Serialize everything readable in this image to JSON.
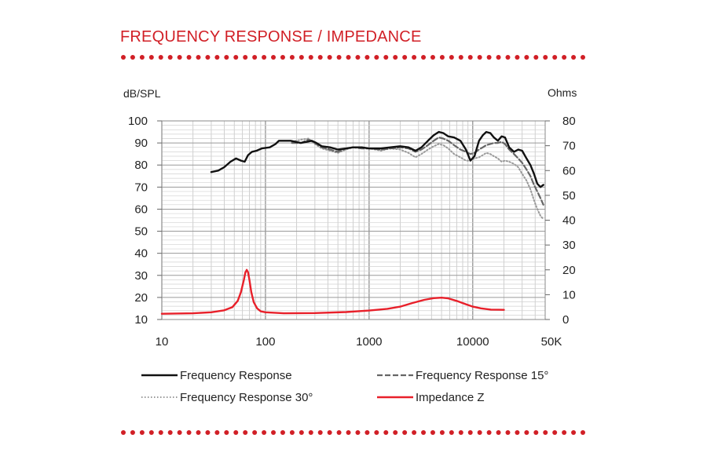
{
  "page": {
    "title": "FREQUENCY RESPONSE / IMPEDANCE",
    "accent_color": "#d11f26"
  },
  "chart_data": {
    "type": "line",
    "title": "",
    "xlabel": "",
    "x_scale": "log",
    "xlim": [
      10,
      50000
    ],
    "x_ticks": [
      {
        "value": 10,
        "label": "10"
      },
      {
        "value": 100,
        "label": "100"
      },
      {
        "value": 1000,
        "label": "1000"
      },
      {
        "value": 10000,
        "label": "10000"
      },
      {
        "value": 50000,
        "label": "50K"
      }
    ],
    "y_left": {
      "label": "dB/SPL",
      "range": [
        10,
        100
      ],
      "ticks": [
        10,
        20,
        30,
        40,
        50,
        60,
        70,
        80,
        90,
        100
      ]
    },
    "y_right": {
      "label": "Ohms",
      "range": [
        0,
        80
      ],
      "ticks": [
        0,
        10,
        20,
        30,
        40,
        50,
        60,
        70,
        80
      ]
    },
    "grid": true,
    "legend_position": "bottom",
    "series": [
      {
        "name": "Frequency Response",
        "axis": "left",
        "style": "solid",
        "color": "#111111",
        "points": [
          [
            30,
            76.8
          ],
          [
            35,
            77.5
          ],
          [
            40,
            79
          ],
          [
            46,
            81.5
          ],
          [
            52,
            83
          ],
          [
            58,
            82
          ],
          [
            63,
            81.5
          ],
          [
            68,
            84.5
          ],
          [
            74,
            86
          ],
          [
            82,
            86.5
          ],
          [
            92,
            87.5
          ],
          [
            110,
            88
          ],
          [
            125,
            89.5
          ],
          [
            135,
            91
          ],
          [
            150,
            91
          ],
          [
            175,
            91
          ],
          [
            195,
            90.5
          ],
          [
            220,
            90
          ],
          [
            250,
            90.5
          ],
          [
            280,
            91
          ],
          [
            310,
            90
          ],
          [
            350,
            88.5
          ],
          [
            420,
            88
          ],
          [
            500,
            87
          ],
          [
            600,
            87.5
          ],
          [
            700,
            88
          ],
          [
            850,
            88
          ],
          [
            1000,
            87.5
          ],
          [
            1300,
            87.5
          ],
          [
            1600,
            88
          ],
          [
            2000,
            88.5
          ],
          [
            2400,
            88
          ],
          [
            2800,
            86.5
          ],
          [
            3200,
            88
          ],
          [
            3700,
            91
          ],
          [
            4200,
            93.5
          ],
          [
            4700,
            95
          ],
          [
            5200,
            94.5
          ],
          [
            5800,
            93
          ],
          [
            6600,
            92.5
          ],
          [
            7600,
            91
          ],
          [
            8600,
            87
          ],
          [
            9500,
            82
          ],
          [
            10400,
            84
          ],
          [
            11500,
            91
          ],
          [
            12500,
            93.5
          ],
          [
            13500,
            95
          ],
          [
            14800,
            94.5
          ],
          [
            16000,
            92.5
          ],
          [
            17500,
            91
          ],
          [
            19000,
            93
          ],
          [
            20500,
            92.5
          ],
          [
            22500,
            88
          ],
          [
            25000,
            86
          ],
          [
            27500,
            87
          ],
          [
            30000,
            86.5
          ],
          [
            33000,
            83
          ],
          [
            36000,
            80
          ],
          [
            39000,
            76
          ],
          [
            42000,
            71.5
          ],
          [
            45000,
            70
          ],
          [
            48000,
            71
          ]
        ]
      },
      {
        "name": "Frequency Response 15°",
        "axis": "left",
        "style": "dashed",
        "color": "#666666",
        "points": [
          [
            180,
            90
          ],
          [
            220,
            90
          ],
          [
            260,
            91.5
          ],
          [
            300,
            90
          ],
          [
            350,
            88
          ],
          [
            420,
            87
          ],
          [
            500,
            86
          ],
          [
            600,
            87.5
          ],
          [
            700,
            88
          ],
          [
            850,
            87.5
          ],
          [
            1000,
            87.5
          ],
          [
            1300,
            87
          ],
          [
            1600,
            87.5
          ],
          [
            2000,
            88
          ],
          [
            2400,
            87.5
          ],
          [
            2800,
            86
          ],
          [
            3200,
            87
          ],
          [
            3700,
            89
          ],
          [
            4200,
            91
          ],
          [
            4700,
            92.5
          ],
          [
            5200,
            92
          ],
          [
            5800,
            91
          ],
          [
            6600,
            89
          ],
          [
            7600,
            87
          ],
          [
            8600,
            86
          ],
          [
            9500,
            85
          ],
          [
            10400,
            85.5
          ],
          [
            11500,
            87
          ],
          [
            12500,
            88
          ],
          [
            13500,
            89
          ],
          [
            14800,
            89.5
          ],
          [
            16000,
            90
          ],
          [
            17500,
            90
          ],
          [
            19000,
            90.5
          ],
          [
            20500,
            89.5
          ],
          [
            22500,
            87
          ],
          [
            25000,
            85
          ],
          [
            27500,
            83
          ],
          [
            30000,
            81
          ],
          [
            33000,
            78
          ],
          [
            36000,
            75
          ],
          [
            39000,
            71
          ],
          [
            42000,
            68
          ],
          [
            45000,
            65
          ],
          [
            48000,
            62
          ]
        ]
      },
      {
        "name": "Frequency Response 30°",
        "axis": "left",
        "style": "dotted",
        "color": "#999999",
        "points": [
          [
            180,
            90.5
          ],
          [
            220,
            91.5
          ],
          [
            260,
            92
          ],
          [
            300,
            89.5
          ],
          [
            350,
            87.5
          ],
          [
            420,
            86.5
          ],
          [
            500,
            85.5
          ],
          [
            600,
            87
          ],
          [
            700,
            88
          ],
          [
            850,
            88
          ],
          [
            1000,
            87.5
          ],
          [
            1300,
            86.5
          ],
          [
            1600,
            87.5
          ],
          [
            2000,
            87
          ],
          [
            2400,
            85.5
          ],
          [
            2800,
            83.5
          ],
          [
            3200,
            85
          ],
          [
            3700,
            87
          ],
          [
            4200,
            88.5
          ],
          [
            4700,
            89.5
          ],
          [
            5200,
            89
          ],
          [
            5800,
            87.5
          ],
          [
            6600,
            85
          ],
          [
            7600,
            83.5
          ],
          [
            8600,
            82
          ],
          [
            9500,
            82
          ],
          [
            10400,
            83
          ],
          [
            11500,
            83.5
          ],
          [
            12500,
            84.5
          ],
          [
            13500,
            85.5
          ],
          [
            14800,
            85
          ],
          [
            16000,
            84
          ],
          [
            17500,
            83
          ],
          [
            19000,
            81.5
          ],
          [
            20500,
            82
          ],
          [
            22500,
            81.5
          ],
          [
            25000,
            80.5
          ],
          [
            27500,
            79
          ],
          [
            30000,
            76
          ],
          [
            33000,
            73
          ],
          [
            36000,
            69
          ],
          [
            39000,
            64
          ],
          [
            42000,
            60
          ],
          [
            45000,
            57
          ],
          [
            48000,
            55.5
          ]
        ]
      },
      {
        "name": "Impedance Z",
        "axis": "right",
        "style": "solid",
        "color": "#e8202a",
        "points": [
          [
            10,
            2.3
          ],
          [
            20,
            2.5
          ],
          [
            30,
            2.9
          ],
          [
            40,
            3.7
          ],
          [
            48,
            5
          ],
          [
            54,
            7.5
          ],
          [
            58,
            11
          ],
          [
            62,
            16
          ],
          [
            64,
            19
          ],
          [
            66,
            20
          ],
          [
            68,
            19
          ],
          [
            70,
            16
          ],
          [
            73,
            11
          ],
          [
            77,
            7
          ],
          [
            83,
            4.5
          ],
          [
            90,
            3.3
          ],
          [
            100,
            2.9
          ],
          [
            150,
            2.5
          ],
          [
            300,
            2.6
          ],
          [
            600,
            3
          ],
          [
            1000,
            3.6
          ],
          [
            1500,
            4.3
          ],
          [
            2000,
            5.2
          ],
          [
            2600,
            6.6
          ],
          [
            3400,
            7.9
          ],
          [
            4200,
            8.6
          ],
          [
            5000,
            8.8
          ],
          [
            5800,
            8.5
          ],
          [
            7000,
            7.5
          ],
          [
            8500,
            6.2
          ],
          [
            10000,
            5.2
          ],
          [
            12000,
            4.5
          ],
          [
            15000,
            4
          ],
          [
            20000,
            3.9
          ]
        ]
      }
    ]
  }
}
